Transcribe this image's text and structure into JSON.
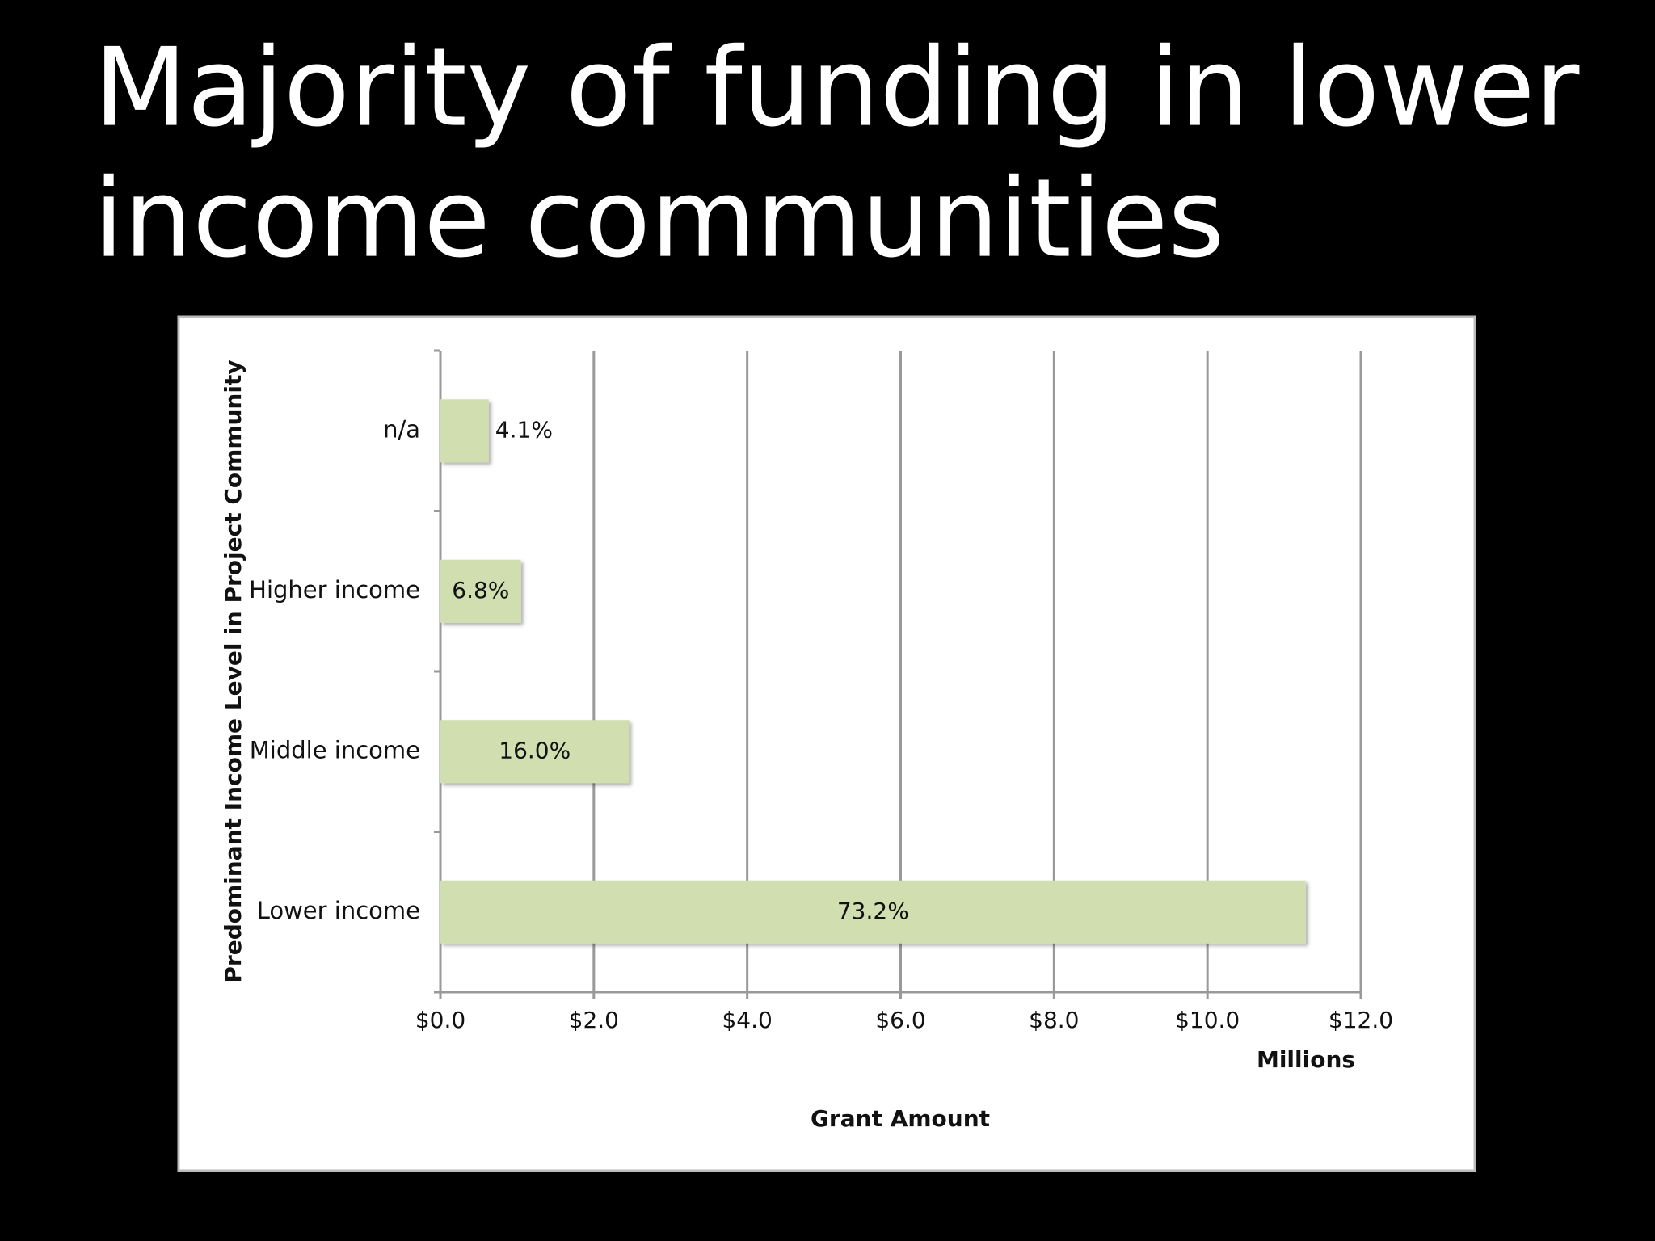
{
  "title": [
    "Majority of funding in lower",
    "income communities"
  ],
  "chart_data": {
    "type": "bar",
    "orientation": "horizontal",
    "categories": [
      "n/a",
      "Higher income",
      "Middle income",
      "Lower income"
    ],
    "values": [
      0.63,
      1.05,
      2.46,
      11.28
    ],
    "bar_labels": [
      "4.1%",
      "6.8%",
      "16.0%",
      "73.2%"
    ],
    "color": "#d0deb0",
    "xlim": [
      0,
      12
    ],
    "xticks": [
      {
        "value": 0,
        "label": "$0.0"
      },
      {
        "value": 2,
        "label": "$2.0"
      },
      {
        "value": 4,
        "label": "$4.0"
      },
      {
        "value": 6,
        "label": "$6.0"
      },
      {
        "value": 8,
        "label": "$8.0"
      },
      {
        "value": 10,
        "label": "$10.0"
      },
      {
        "value": 12,
        "label": "$12.0"
      }
    ],
    "x_unit": "Millions",
    "x_label": "Grant Amount",
    "y_label": "Predominant Income Level in Project Community",
    "grid": true
  }
}
